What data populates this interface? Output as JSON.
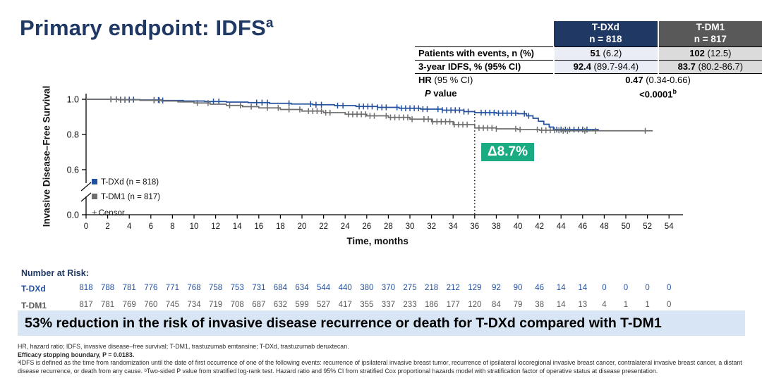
{
  "title": {
    "main": "Primary endpoint: IDFS",
    "sup": "a"
  },
  "results_table": {
    "col_headers": [
      {
        "line1": "T-DXd",
        "line2": "n = 818",
        "bg": "#1F3864"
      },
      {
        "line1": "T-DM1",
        "line2": "n = 817",
        "bg": "#595959"
      }
    ],
    "rows": [
      {
        "label": "Patients with events, n (%)",
        "v1_main": "51",
        "v1_rest": " (6.2)",
        "v2_main": "102",
        "v2_rest": " (12.5)"
      },
      {
        "label": "3-year IDFS, % (95% CI)",
        "v1_main": "92.4",
        "v1_rest": " (89.7-94.4)",
        "v2_main": "83.7",
        "v2_rest": " (80.2-86.7)"
      }
    ],
    "hr_row": {
      "label_bold": "HR",
      "label_rest": " (95 % CI)",
      "value_main": "0.47",
      "value_rest": " (0.34-0.66)"
    },
    "p_row": {
      "label_italic": "P",
      "label_rest": " value",
      "value_main": "<0.0001",
      "value_sup": "b"
    }
  },
  "chart_data": {
    "type": "line",
    "subtype": "kaplan-meier-step",
    "title": "Primary endpoint: IDFS",
    "xlabel": "Time, months",
    "ylabel": "Invasive Disease–Free Survival",
    "xlim": [
      0,
      54
    ],
    "xtick_step": 2,
    "yticks": [
      "1.0",
      "0.8",
      "0.6",
      "0.0"
    ],
    "ytick_values": [
      1.0,
      0.8,
      0.6,
      0.0
    ],
    "y_axis_break_between": [
      0.6,
      0.0
    ],
    "grid": false,
    "legend_position": "inside-lower-left",
    "reference_line_x": 36,
    "annotation": {
      "label": "Δ8.7%",
      "color": "#1BAB82",
      "at_month": 36
    },
    "legend": {
      "censor_label": "Censor"
    },
    "series": [
      {
        "name": "T-DXd (n = 818)",
        "color": "#24519E",
        "x": [
          0,
          3,
          5,
          7,
          9,
          11,
          13,
          15,
          17,
          19,
          21,
          23,
          25,
          27,
          29,
          31,
          33,
          35,
          36,
          38,
          40,
          40.8,
          41.4,
          41.9,
          42.4,
          42.9,
          43.3
        ],
        "y": [
          1.0,
          0.998,
          0.996,
          0.993,
          0.99,
          0.987,
          0.984,
          0.981,
          0.977,
          0.973,
          0.969,
          0.964,
          0.959,
          0.954,
          0.949,
          0.944,
          0.938,
          0.93,
          0.924,
          0.921,
          0.918,
          0.906,
          0.892,
          0.875,
          0.858,
          0.842,
          0.828
        ],
        "end_x": 47.5,
        "censor_x": [
          2.3,
          2.8,
          3.2,
          3.6,
          4.0,
          4.4,
          6.3,
          6.7,
          7.1,
          11.8,
          12.3,
          15.8,
          16.3,
          16.8,
          18.8,
          20.8,
          21.3,
          21.8,
          23.3,
          23.8,
          25.3,
          25.7,
          26.1,
          26.5,
          27.0,
          27.4,
          27.8,
          28.8,
          29.2,
          29.6,
          30.0,
          30.4,
          30.8,
          31.2,
          31.6,
          32.6,
          33.0,
          33.4,
          33.8,
          34.2,
          34.6,
          35.0,
          35.4,
          36.6,
          37.0,
          37.4,
          37.8,
          38.2,
          38.6,
          39.0,
          39.4,
          39.8,
          40.6,
          41.0,
          43.6,
          44.0,
          44.4,
          44.8,
          45.2,
          45.6,
          46.0,
          46.4
        ]
      },
      {
        "name": "T-DM1 (n = 817)",
        "color": "#6E6E6E",
        "x": [
          0,
          3,
          5,
          7,
          8.5,
          10,
          11.5,
          13,
          14.5,
          16,
          18,
          20,
          22,
          24,
          26,
          28,
          30,
          32,
          34,
          36,
          38,
          40,
          42,
          44
        ],
        "y": [
          1.0,
          0.997,
          0.994,
          0.99,
          0.985,
          0.979,
          0.972,
          0.965,
          0.958,
          0.951,
          0.942,
          0.933,
          0.924,
          0.915,
          0.906,
          0.897,
          0.887,
          0.873,
          0.856,
          0.837,
          0.832,
          0.828,
          0.824,
          0.821
        ],
        "end_x": 52.5,
        "censor_x": [
          2.3,
          2.8,
          3.2,
          3.6,
          6.3,
          6.8,
          10.3,
          11.3,
          13.3,
          14.3,
          15.3,
          16.8,
          17.8,
          18.8,
          19.8,
          20.6,
          21.0,
          21.4,
          21.8,
          22.2,
          22.6,
          24.3,
          24.7,
          25.1,
          25.5,
          25.9,
          26.3,
          26.7,
          27.8,
          28.2,
          28.6,
          29.0,
          29.4,
          29.8,
          30.2,
          31.3,
          31.7,
          32.1,
          32.5,
          32.9,
          33.3,
          33.7,
          34.1,
          34.5,
          34.9,
          35.3,
          36.4,
          36.8,
          37.2,
          37.6,
          38.0,
          39.8,
          40.2,
          41.8,
          42.2,
          42.6,
          43.0,
          43.4,
          43.8,
          44.2,
          44.6,
          46.2,
          47.2,
          51.8
        ]
      }
    ],
    "number_at_risk": {
      "heading": "Number at Risk:",
      "months": [
        0,
        2,
        4,
        6,
        8,
        10,
        12,
        14,
        16,
        18,
        20,
        22,
        24,
        26,
        28,
        30,
        32,
        34,
        36,
        38,
        40,
        42,
        44,
        46,
        48,
        50,
        52,
        54
      ],
      "rows": [
        {
          "label": "T-DXd",
          "color": "#24519E",
          "counts": [
            818,
            788,
            781,
            776,
            771,
            768,
            758,
            753,
            731,
            684,
            634,
            544,
            440,
            380,
            370,
            275,
            218,
            212,
            129,
            92,
            90,
            46,
            14,
            14,
            0,
            0,
            0,
            0
          ]
        },
        {
          "label": "T-DM1",
          "color": "#595959",
          "counts": [
            817,
            781,
            769,
            760,
            745,
            734,
            719,
            708,
            687,
            632,
            599,
            527,
            417,
            355,
            337,
            233,
            186,
            177,
            120,
            84,
            79,
            38,
            14,
            13,
            4,
            1,
            1,
            0
          ]
        }
      ]
    }
  },
  "banner": {
    "text": "53% reduction in the risk of invasive disease recurrence or death for T-DXd compared with T-DM1",
    "bg": "#D8E5F4"
  },
  "footnotes": [
    {
      "bold": false,
      "text": "HR, hazard ratio; IDFS, invasive disease–free survival; T-DM1, trastuzumab emtansine; T-DXd, trastuzumab deruxtecan."
    },
    {
      "bold": true,
      "text": "Efficacy stopping boundary, P = 0.0183."
    },
    {
      "bold": false,
      "text": "ᵃIDFS is defined as the time from randomization until the date of first occurrence of one of the following events: recurrence of ipsilateral invasive breast tumor, recurrence of ipsilateral locoregional invasive breast cancer, contralateral invasive breast cancer, a distant disease recurrence, or death from any cause. ᵇTwo-sided P value from stratified log-rank test. Hazard ratio and 95% CI from stratified Cox proportional hazards model with stratification factor of operative status at disease presentation."
    }
  ]
}
